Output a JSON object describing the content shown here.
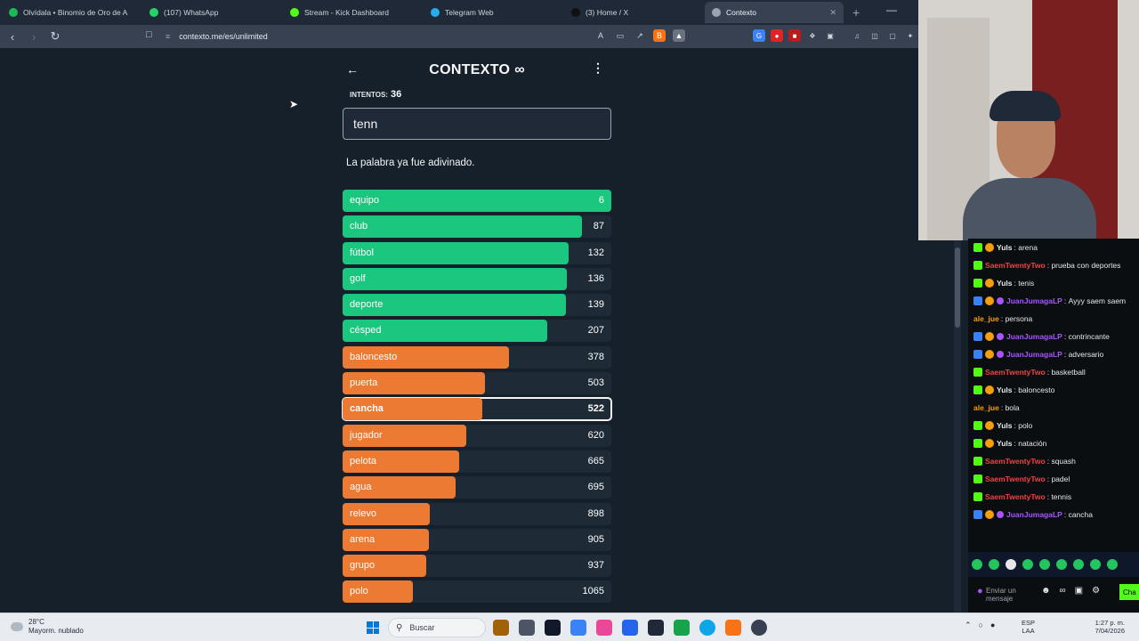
{
  "browser": {
    "tabs": [
      {
        "title": "Olvídala • Binomio de Oro de A",
        "icon_color": "#1db954"
      },
      {
        "title": "(107) WhatsApp",
        "icon_color": "#25d366"
      },
      {
        "title": "Stream - Kick Dashboard",
        "icon_color": "#53fc18"
      },
      {
        "title": "Telegram Web",
        "icon_color": "#2aabee"
      },
      {
        "title": "(3) Home / X",
        "icon_color": "#111111"
      },
      {
        "title": "Contexto",
        "icon_color": "#9ca3af"
      }
    ],
    "new_tab": "+",
    "url": "contexto.me/es/unlimited"
  },
  "game": {
    "title": "CONTEXTO",
    "infinity": "∞",
    "attempts_label": "INTENTOS:",
    "attempts_value": "36",
    "input_value": "tenn",
    "message": "La palabra ya fue adivinado.",
    "current_word": "cancha",
    "colors": {
      "green": "#1bc77f",
      "orange": "#ec7a33",
      "track": "#1f2a37"
    },
    "guesses": [
      {
        "word": "equipo",
        "rank": 6,
        "fill": 1.0
      },
      {
        "word": "club",
        "rank": 87,
        "fill": 0.89
      },
      {
        "word": "fútbol",
        "rank": 132,
        "fill": 0.84
      },
      {
        "word": "golf",
        "rank": 136,
        "fill": 0.835
      },
      {
        "word": "deporte",
        "rank": 139,
        "fill": 0.83
      },
      {
        "word": "césped",
        "rank": 207,
        "fill": 0.76
      },
      {
        "word": "baloncesto",
        "rank": 378,
        "fill": 0.62
      },
      {
        "word": "puerta",
        "rank": 503,
        "fill": 0.53
      },
      {
        "word": "cancha",
        "rank": 522,
        "fill": 0.52
      },
      {
        "word": "jugador",
        "rank": 620,
        "fill": 0.46
      },
      {
        "word": "pelota",
        "rank": 665,
        "fill": 0.435
      },
      {
        "word": "agua",
        "rank": 695,
        "fill": 0.42
      },
      {
        "word": "relevo",
        "rank": 898,
        "fill": 0.325
      },
      {
        "word": "arena",
        "rank": 905,
        "fill": 0.32
      },
      {
        "word": "grupo",
        "rank": 937,
        "fill": 0.31
      },
      {
        "word": "polo",
        "rank": 1065,
        "fill": 0.26
      }
    ]
  },
  "chat": {
    "messages": [
      {
        "badges": [
          "mod",
          "sub"
        ],
        "user": "Yuls",
        "color": "#e5e7eb",
        "text": "arena"
      },
      {
        "badges": [
          "mod"
        ],
        "user": "SaemTwentyTwo",
        "color": "#ef4444",
        "text": "prueba con deportes"
      },
      {
        "badges": [
          "mod",
          "sub"
        ],
        "user": "Yuls",
        "color": "#e5e7eb",
        "text": "tenis"
      },
      {
        "badges": [
          "vip",
          "sub",
          "ver"
        ],
        "user": "JuanJumagaLP",
        "color": "#a855f7",
        "text": "Ayyy saem saem"
      },
      {
        "badges": [],
        "user": "ale_jue",
        "color": "#f59e0b",
        "text": "persona"
      },
      {
        "badges": [
          "vip",
          "sub",
          "ver"
        ],
        "user": "JuanJumagaLP",
        "color": "#a855f7",
        "text": "contrincante"
      },
      {
        "badges": [
          "vip",
          "sub",
          "ver"
        ],
        "user": "JuanJumagaLP",
        "color": "#a855f7",
        "text": "adversario"
      },
      {
        "badges": [
          "mod"
        ],
        "user": "SaemTwentyTwo",
        "color": "#ef4444",
        "text": "basketball"
      },
      {
        "badges": [
          "mod",
          "sub"
        ],
        "user": "Yuls",
        "color": "#e5e7eb",
        "text": "baloncesto"
      },
      {
        "badges": [],
        "user": "ale_jue",
        "color": "#f59e0b",
        "text": "bola"
      },
      {
        "badges": [
          "mod",
          "sub"
        ],
        "user": "Yuls",
        "color": "#e5e7eb",
        "text": "polo"
      },
      {
        "badges": [
          "mod",
          "sub"
        ],
        "user": "Yuls",
        "color": "#e5e7eb",
        "text": "natación"
      },
      {
        "badges": [
          "mod"
        ],
        "user": "SaemTwentyTwo",
        "color": "#ef4444",
        "text": "squash"
      },
      {
        "badges": [
          "mod"
        ],
        "user": "SaemTwentyTwo",
        "color": "#ef4444",
        "text": "padel"
      },
      {
        "badges": [
          "mod"
        ],
        "user": "SaemTwentyTwo",
        "color": "#ef4444",
        "text": "tennis"
      },
      {
        "badges": [
          "vip",
          "sub",
          "ver"
        ],
        "user": "JuanJumagaLP",
        "color": "#a855f7",
        "text": "cancha"
      }
    ],
    "input_placeholder": "Enviar un mensaje",
    "send_label": "Cha"
  },
  "taskbar": {
    "weather_temp": "28°C",
    "weather_desc": "Mayorm. nublado",
    "search_label": "Buscar",
    "lang_top": "ESP",
    "lang_bottom": "LAA",
    "time": "1:27 p. m.",
    "date": "7/04/2026"
  }
}
